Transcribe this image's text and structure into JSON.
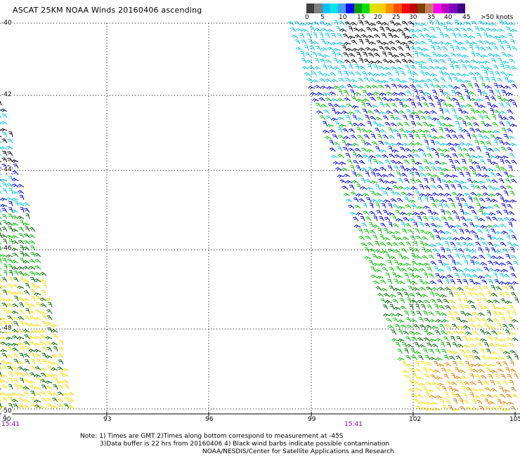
{
  "title": "ASCAT 25KM NOAA Winds 20160406 ascending",
  "legend": {
    "ticks": [
      "0",
      "5",
      "10",
      "15",
      "20",
      "25",
      "30",
      "35",
      "40",
      "45",
      ">50 knots"
    ],
    "colors": [
      "#404040",
      "#808080",
      "#00c0ff",
      "#00e6e6",
      "#40a0ff",
      "#0000ff",
      "#00a000",
      "#00e000",
      "#e0e000",
      "#ffd000",
      "#ff9000",
      "#ff5000",
      "#ff0000",
      "#c00000",
      "#804000",
      "#c08060",
      "#ff00ff",
      "#c000c0",
      "#8000c0",
      "#400080"
    ]
  },
  "latitude_labels": [
    "-40",
    "-42",
    "-44",
    "-46",
    "-48",
    "-50"
  ],
  "longitude_labels": [
    "90",
    "93",
    "96",
    "99",
    "102",
    "105"
  ],
  "time_labels": [
    "15:41",
    "15:41"
  ],
  "notes": {
    "line1": "Note: 1) Times are GMT 2)Times along bottom correspond to measurement at -45S",
    "line2": "3)Data buffer is 22 hrs from 20160406 4) Black wind barbs indicate possible contamination",
    "line3": "NOAA/NESDIS/Center for Satellite Applications and Research"
  },
  "barb_colors": {
    "contaminated": "#000000",
    "cyan": "#00c8e6",
    "blue": "#0000e0",
    "green": "#00c000",
    "dark_green": "#006000",
    "yellow": "#f0e000",
    "orange": "#e08000"
  }
}
